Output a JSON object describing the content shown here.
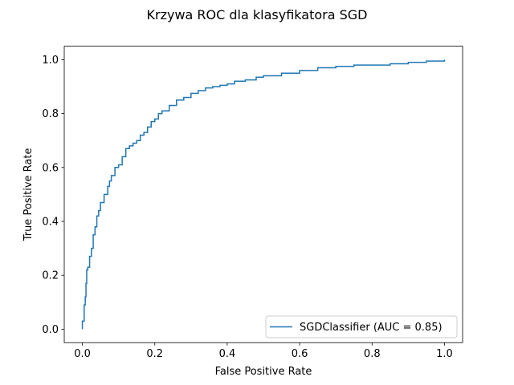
{
  "chart_data": {
    "type": "line",
    "title": "Krzywa ROC dla klasyfikatora SGD",
    "xlabel": "False Positive Rate",
    "ylabel": "True Positive Rate",
    "xlim": [
      -0.05,
      1.05
    ],
    "ylim": [
      -0.05,
      1.05
    ],
    "xticks": [
      0.0,
      0.2,
      0.4,
      0.6,
      0.8,
      1.0
    ],
    "xtick_labels": [
      "0.0",
      "0.2",
      "0.4",
      "0.6",
      "0.8",
      "1.0"
    ],
    "yticks": [
      0.0,
      0.2,
      0.4,
      0.6,
      0.8,
      1.0
    ],
    "ytick_labels": [
      "0.0",
      "0.2",
      "0.4",
      "0.6",
      "0.8",
      "1.0"
    ],
    "grid": false,
    "legend_position": "lower-right",
    "series": [
      {
        "name": "SGDClassifier (AUC = 0.85)",
        "color": "#1f77b4",
        "x": [
          0.0,
          0.0,
          0.005,
          0.008,
          0.01,
          0.012,
          0.015,
          0.02,
          0.025,
          0.03,
          0.035,
          0.04,
          0.045,
          0.05,
          0.06,
          0.07,
          0.075,
          0.08,
          0.09,
          0.1,
          0.11,
          0.12,
          0.13,
          0.135,
          0.14,
          0.15,
          0.16,
          0.17,
          0.18,
          0.19,
          0.2,
          0.21,
          0.22,
          0.24,
          0.26,
          0.28,
          0.3,
          0.32,
          0.34,
          0.36,
          0.38,
          0.4,
          0.42,
          0.45,
          0.48,
          0.5,
          0.55,
          0.6,
          0.65,
          0.7,
          0.75,
          0.8,
          0.85,
          0.9,
          0.95,
          1.0
        ],
        "y": [
          0.0,
          0.03,
          0.09,
          0.12,
          0.17,
          0.22,
          0.23,
          0.27,
          0.3,
          0.35,
          0.38,
          0.42,
          0.44,
          0.47,
          0.5,
          0.53,
          0.55,
          0.57,
          0.6,
          0.61,
          0.64,
          0.67,
          0.68,
          0.68,
          0.69,
          0.7,
          0.72,
          0.73,
          0.75,
          0.77,
          0.78,
          0.8,
          0.81,
          0.83,
          0.85,
          0.86,
          0.875,
          0.885,
          0.895,
          0.9,
          0.905,
          0.91,
          0.92,
          0.925,
          0.935,
          0.94,
          0.95,
          0.96,
          0.97,
          0.975,
          0.98,
          0.98,
          0.985,
          0.99,
          0.995,
          1.0
        ]
      }
    ]
  }
}
